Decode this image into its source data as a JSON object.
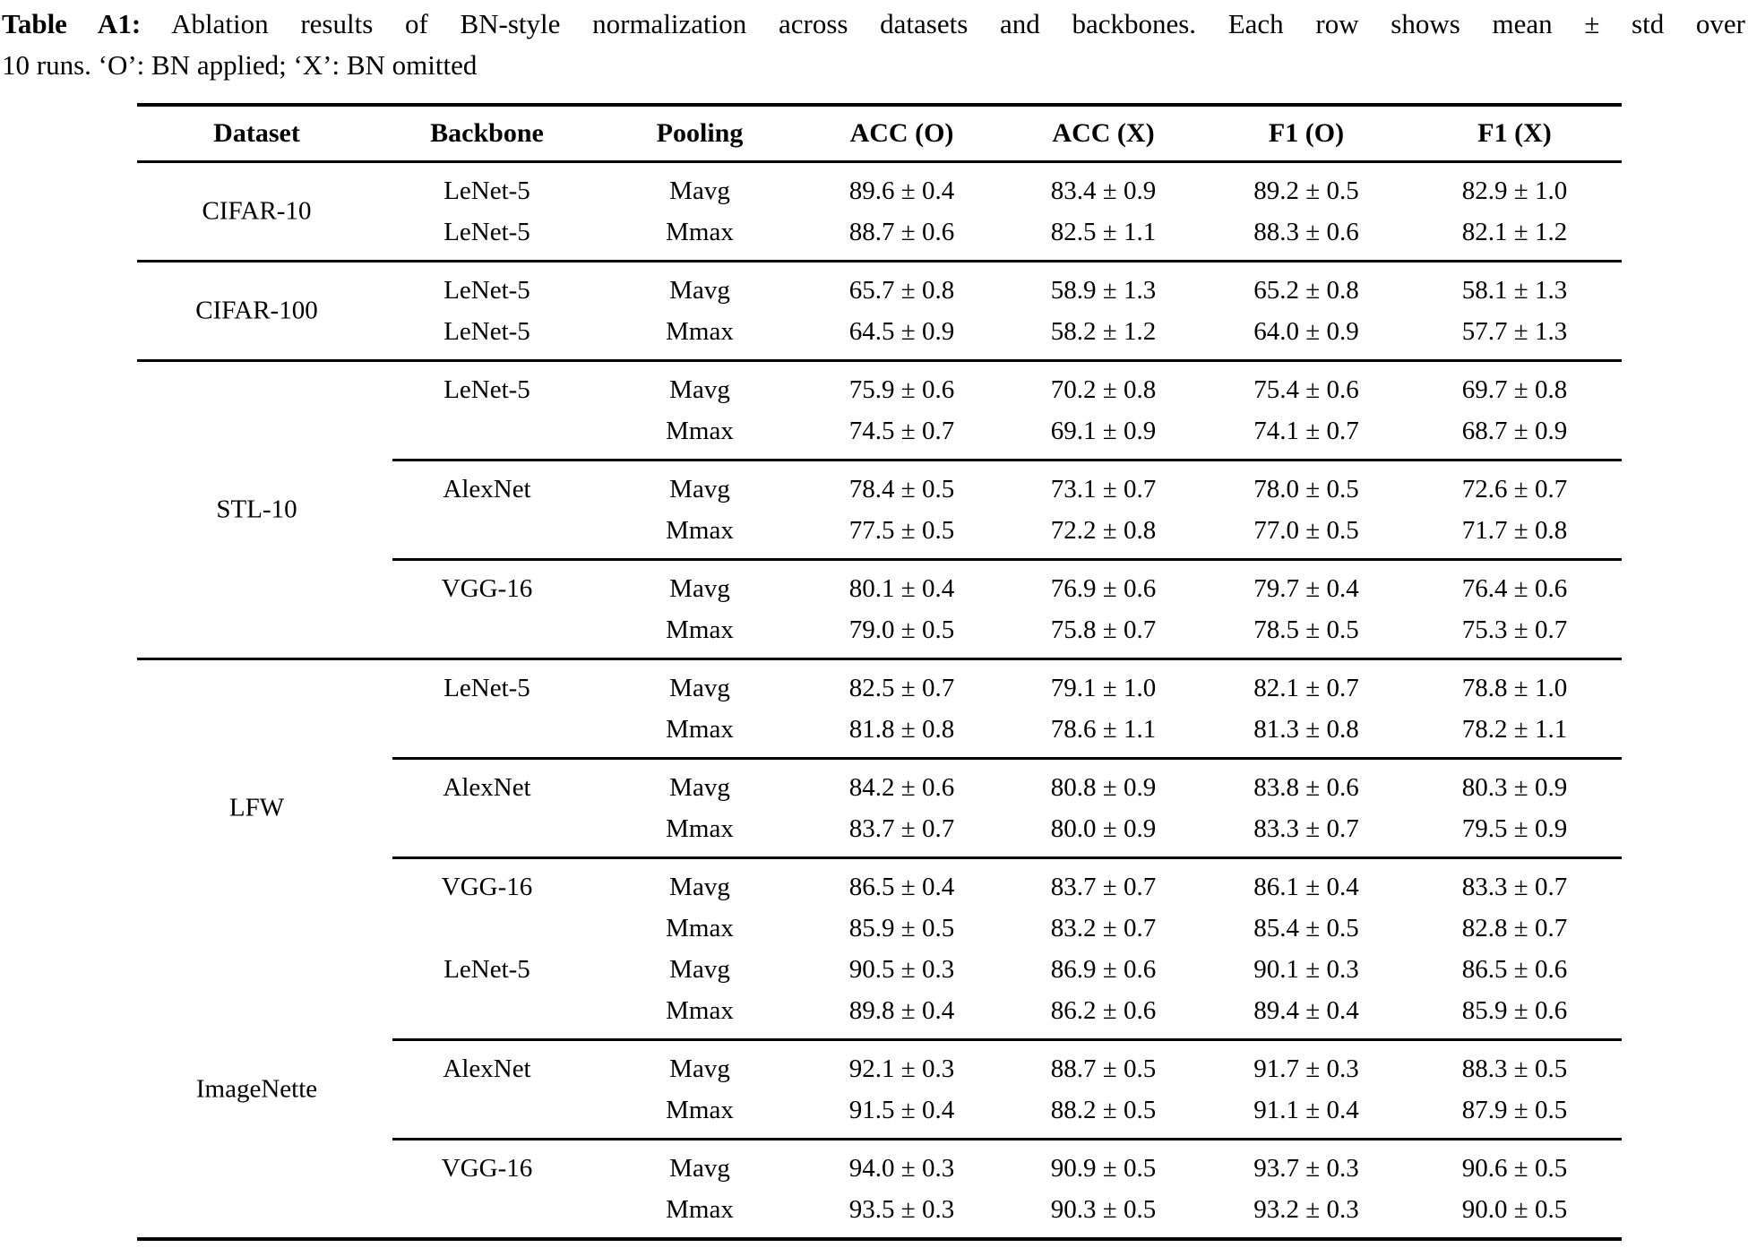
{
  "caption": {
    "title_label": "Table A1:",
    "line1_rest": " Ablation results of BN-style normalization across datasets and backbones. Each row shows mean ± std over",
    "line2": "10 runs. ‘O’: BN applied; ‘X’: BN omitted"
  },
  "table": {
    "headers": [
      "Dataset",
      "Backbone",
      "Pooling",
      "ACC (O)",
      "ACC (X)",
      "F1 (O)",
      "F1 (X)"
    ],
    "groups": [
      {
        "subs": [
          {
            "label": "CIFAR-10",
            "rows": [
              [
                "LeNet-5",
                "Mavg",
                "89.6 ± 0.4",
                "83.4 ± 0.9",
                "89.2 ± 0.5",
                "82.9 ± 1.0"
              ],
              [
                "LeNet-5",
                "Mmax",
                "88.7 ± 0.6",
                "82.5 ± 1.1",
                "88.3 ± 0.6",
                "82.1 ± 1.2"
              ]
            ]
          }
        ]
      },
      {
        "subs": [
          {
            "label": "CIFAR-100",
            "rows": [
              [
                "LeNet-5",
                "Mavg",
                "65.7 ± 0.8",
                "58.9 ± 1.3",
                "65.2 ± 0.8",
                "58.1 ± 1.3"
              ],
              [
                "LeNet-5",
                "Mmax",
                "64.5 ± 0.9",
                "58.2 ± 1.2",
                "64.0 ± 0.9",
                "57.7 ± 1.3"
              ]
            ]
          }
        ]
      },
      {
        "subs": [
          {
            "rows": [
              [
                "LeNet-5",
                "Mavg",
                "75.9 ± 0.6",
                "70.2 ± 0.8",
                "75.4 ± 0.6",
                "69.7 ± 0.8"
              ],
              [
                "",
                "Mmax",
                "74.5 ± 0.7",
                "69.1 ± 0.9",
                "74.1 ± 0.7",
                "68.7 ± 0.9"
              ]
            ]
          },
          {
            "label": "STL-10",
            "rows": [
              [
                "AlexNet",
                "Mavg",
                "78.4 ± 0.5",
                "73.1 ± 0.7",
                "78.0 ± 0.5",
                "72.6 ± 0.7"
              ],
              [
                "",
                "Mmax",
                "77.5 ± 0.5",
                "72.2 ± 0.8",
                "77.0 ± 0.5",
                "71.7 ± 0.8"
              ]
            ]
          },
          {
            "rows": [
              [
                "VGG-16",
                "Mavg",
                "80.1 ± 0.4",
                "76.9 ± 0.6",
                "79.7 ± 0.4",
                "76.4 ± 0.6"
              ],
              [
                "",
                "Mmax",
                "79.0 ± 0.5",
                "75.8 ± 0.7",
                "78.5 ± 0.5",
                "75.3 ± 0.7"
              ]
            ]
          }
        ]
      },
      {
        "subs": [
          {
            "rows": [
              [
                "LeNet-5",
                "Mavg",
                "82.5 ± 0.7",
                "79.1 ± 1.0",
                "82.1 ± 0.7",
                "78.8 ± 1.0"
              ],
              [
                "",
                "Mmax",
                "81.8 ± 0.8",
                "78.6 ± 1.1",
                "81.3 ± 0.8",
                "78.2 ± 1.1"
              ]
            ]
          },
          {
            "label": "LFW",
            "rows": [
              [
                "AlexNet",
                "Mavg",
                "84.2 ± 0.6",
                "80.8 ± 0.9",
                "83.8 ± 0.6",
                "80.3 ± 0.9"
              ],
              [
                "",
                "Mmax",
                "83.7 ± 0.7",
                "80.0 ± 0.9",
                "83.3 ± 0.7",
                "79.5 ± 0.9"
              ]
            ]
          },
          {
            "rows": [
              [
                "VGG-16",
                "Mavg",
                "86.5 ± 0.4",
                "83.7 ± 0.7",
                "86.1 ± 0.4",
                "83.3 ± 0.7"
              ],
              [
                "",
                "Mmax",
                "85.9 ± 0.5",
                "83.2 ± 0.7",
                "85.4 ± 0.5",
                "82.8 ± 0.7"
              ],
              [
                "LeNet-5",
                "Mavg",
                "90.5 ± 0.3",
                "86.9 ± 0.6",
                "90.1 ± 0.3",
                "86.5 ± 0.6"
              ],
              [
                "",
                "Mmax",
                "89.8 ± 0.4",
                "86.2 ± 0.6",
                "89.4 ± 0.4",
                "85.9 ± 0.6"
              ]
            ]
          },
          {
            "label": "ImageNette",
            "rows": [
              [
                "AlexNet",
                "Mavg",
                "92.1 ± 0.3",
                "88.7 ± 0.5",
                "91.7 ± 0.3",
                "88.3 ± 0.5"
              ],
              [
                "",
                "Mmax",
                "91.5 ± 0.4",
                "88.2 ± 0.5",
                "91.1 ± 0.4",
                "87.9 ± 0.5"
              ]
            ]
          },
          {
            "rows": [
              [
                "VGG-16",
                "Mavg",
                "94.0 ± 0.3",
                "90.9 ± 0.5",
                "93.7 ± 0.3",
                "90.6 ± 0.5"
              ],
              [
                "",
                "Mmax",
                "93.5 ± 0.3",
                "90.3 ± 0.5",
                "93.2 ± 0.3",
                "90.0 ± 0.5"
              ]
            ]
          }
        ]
      }
    ]
  }
}
